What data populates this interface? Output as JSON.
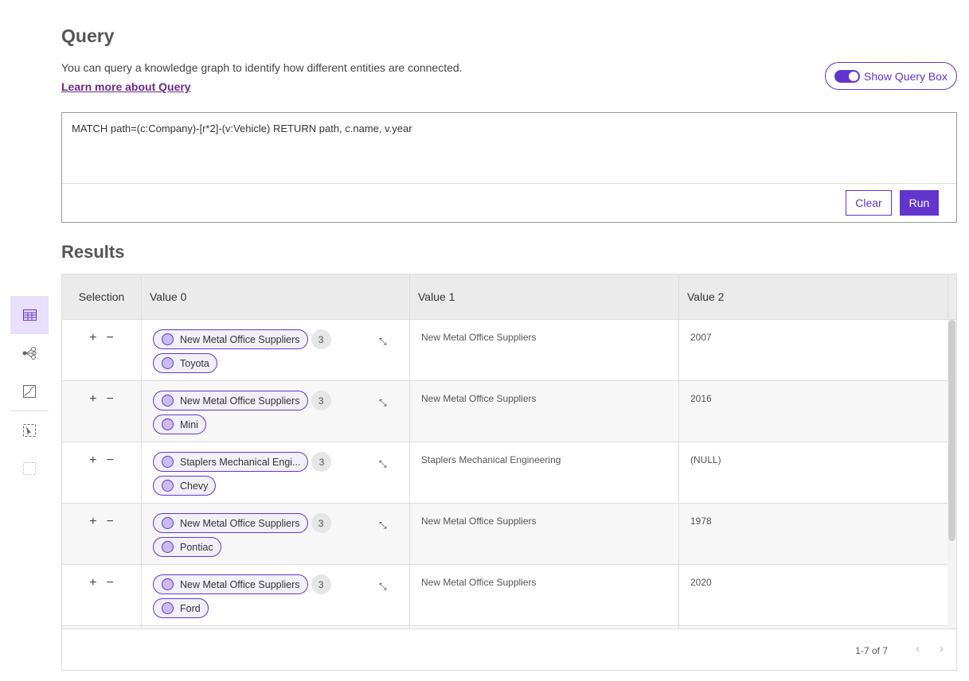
{
  "sidebar": {
    "items": [
      {
        "icon": "table-icon",
        "active": true
      },
      {
        "icon": "link-chart-icon"
      },
      {
        "icon": "map-icon"
      },
      {
        "icon": "select-icon"
      },
      {
        "icon": "clear-selection-icon",
        "disabled": true
      }
    ]
  },
  "header": {
    "title": "Query",
    "description": "You can query a knowledge graph to identify how different entities are connected.",
    "learn_more": "Learn more about Query",
    "toggle_label": "Show Query Box",
    "toggle_on": true
  },
  "query": {
    "text": "MATCH path=(c:Company)-[r*2]-(v:Vehicle) RETURN path, c.name, v.year",
    "clear": "Clear",
    "run": "Run"
  },
  "results": {
    "title": "Results",
    "columns": [
      "Selection",
      "Value 0",
      "Value 1",
      "Value 2"
    ],
    "rows": [
      {
        "start": "New Metal Office Suppliers",
        "count": "3",
        "end": "Toyota",
        "v1": "New Metal Office Suppliers",
        "v2": "2007"
      },
      {
        "start": "New Metal Office Suppliers",
        "count": "3",
        "end": "Mini",
        "v1": "New Metal Office Suppliers",
        "v2": "2016"
      },
      {
        "start": "Staplers Mechanical Engi...",
        "count": "3",
        "end": "Chevy",
        "v1": "Staplers Mechanical Engineering",
        "v2": "(NULL)"
      },
      {
        "start": "New Metal Office Suppliers",
        "count": "3",
        "end": "Pontiac",
        "v1": "New Metal Office Suppliers",
        "v2": "1978"
      },
      {
        "start": "New Metal Office Suppliers",
        "count": "3",
        "end": "Ford",
        "v1": "New Metal Office Suppliers",
        "v2": "2020"
      }
    ],
    "pagination": "1-7 of 7"
  },
  "colors": {
    "accent": "#6236cc"
  }
}
